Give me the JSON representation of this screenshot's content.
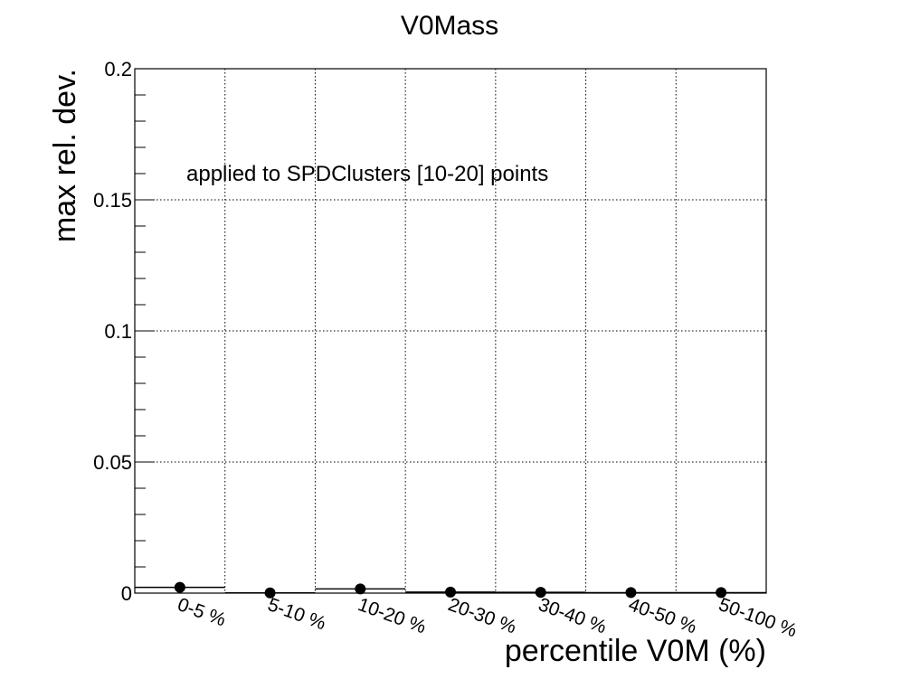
{
  "chart_data": {
    "type": "scatter",
    "title": "V0Mass",
    "xlabel": "percentile V0M (%)",
    "ylabel": "max rel. dev.",
    "annotation": "applied to SPDClusters [10-20] points",
    "categories": [
      "0-5 %",
      "5-10 %",
      "10-20 %",
      "20-30 %",
      "30-40 %",
      "40-50 %",
      "50-100 %"
    ],
    "values": [
      0.0022,
      0.0001,
      0.0016,
      0.0004,
      0.0003,
      0.0002,
      0.0002
    ],
    "ylim": [
      0,
      0.2
    ],
    "yticks": [
      "0",
      "0.05",
      "0.1",
      "0.15",
      "0.2"
    ],
    "ytick_values": [
      0,
      0.05,
      0.1,
      0.15,
      0.2
    ],
    "grid": true,
    "marker_color": "#000000"
  }
}
